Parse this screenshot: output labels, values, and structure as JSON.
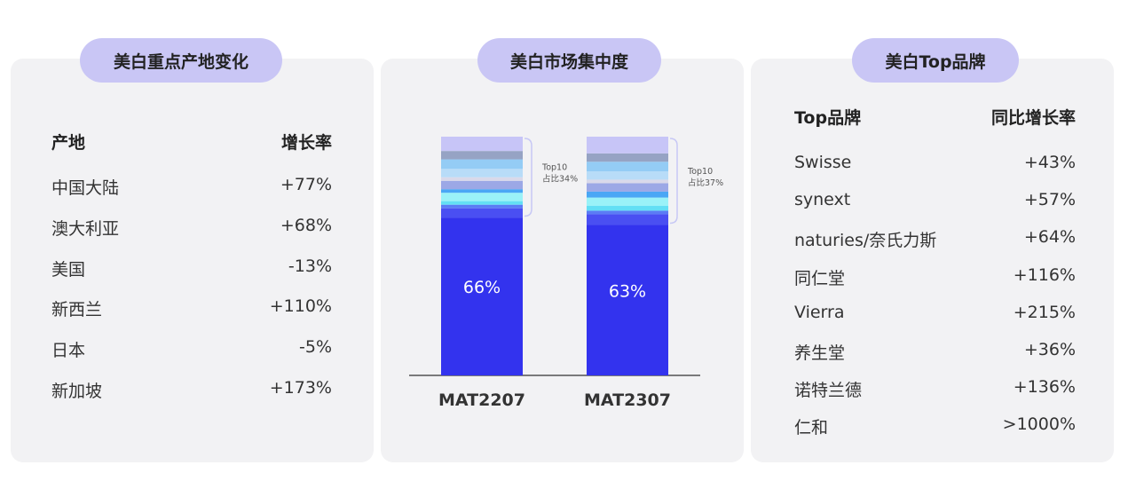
{
  "panel1": {
    "title": "美白重点产地变化",
    "col_left": "产地",
    "col_right": "增长率",
    "rows": [
      {
        "name": "中国大陆",
        "value": "+77%"
      },
      {
        "name": "澳大利亚",
        "value": "+68%"
      },
      {
        "name": "美国",
        "value": "-13%"
      },
      {
        "name": "新西兰",
        "value": "+110%"
      },
      {
        "name": "日本",
        "value": "-5%"
      },
      {
        "name": "新加坡",
        "value": "+173%"
      }
    ]
  },
  "panel2": {
    "title": "美白市场集中度"
  },
  "panel3": {
    "title": "美白Top品牌",
    "col_left": "Top品牌",
    "col_right": "同比增长率",
    "rows": [
      {
        "name": "Swisse",
        "value": "+43%"
      },
      {
        "name": "synext",
        "value": "+57%"
      },
      {
        "name": "naturies/奈氏力斯",
        "value": "+64%"
      },
      {
        "name": "同仁堂",
        "value": "+116%"
      },
      {
        "name": "Vierra",
        "value": "+215%"
      },
      {
        "name": "养生堂",
        "value": "+36%"
      },
      {
        "name": "诺特兰德",
        "value": "+136%"
      },
      {
        "name": "仁和",
        "value": ">1000%"
      }
    ]
  },
  "chart_data": {
    "type": "bar",
    "stacked": true,
    "normalized": true,
    "categories": [
      "MAT2207",
      "MAT2307"
    ],
    "main_share": [
      66,
      63
    ],
    "main_labels": [
      "66%",
      "63%"
    ],
    "top10_labels": [
      "Top10\n占比34%",
      "Top10\n占比37%"
    ],
    "segments": [
      [
        4.0,
        1.5,
        1.5,
        3.5,
        1.5,
        3.5,
        1.5,
        3.5,
        4.0,
        3.5,
        6.0
      ],
      [
        4.5,
        1.5,
        2.0,
        3.5,
        2.5,
        3.5,
        1.5,
        3.5,
        4.0,
        3.5,
        7.0
      ]
    ],
    "segment_colors": [
      "#4a4ff2",
      "#5b7bf5",
      "#63dff5",
      "#9af2f8",
      "#4aa7f5",
      "#9ca8e6",
      "#d9d9ea",
      "#b8dcf8",
      "#94ccf5",
      "#96a3c4",
      "#c7c5f7"
    ],
    "main_color": "#3333ee",
    "ylim": [
      0,
      100
    ],
    "grid": false
  }
}
